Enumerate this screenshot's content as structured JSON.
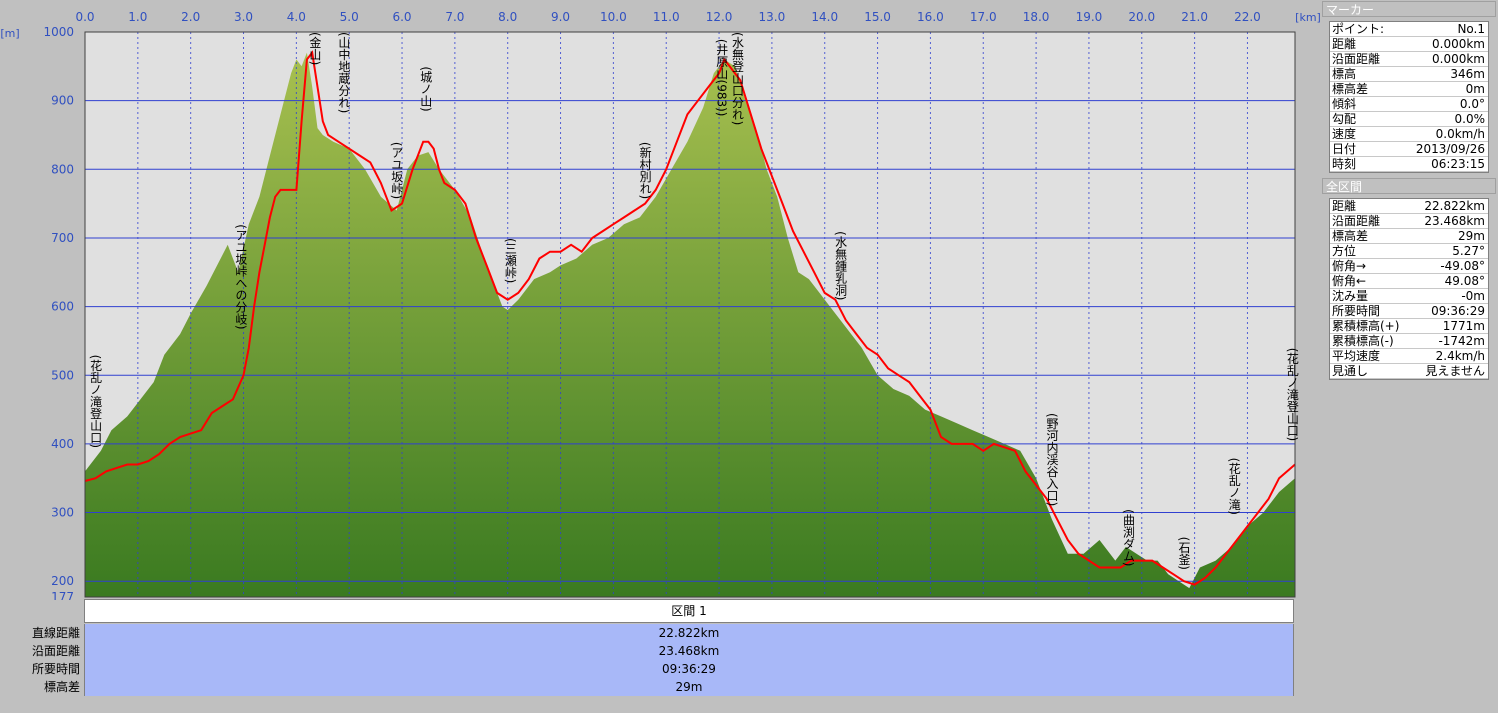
{
  "chart_data": {
    "type": "area",
    "title": "",
    "xlabel": "[km]",
    "ylabel": "[m]",
    "xlim": [
      0,
      22.9
    ],
    "ylim": [
      177,
      1000
    ],
    "x_ticks": [
      "0.0",
      "1.0",
      "2.0",
      "3.0",
      "4.0",
      "5.0",
      "6.0",
      "7.0",
      "8.0",
      "9.0",
      "10.0",
      "11.0",
      "12.0",
      "13.0",
      "14.0",
      "15.0",
      "16.0",
      "17.0",
      "18.0",
      "19.0",
      "20.0",
      "21.0",
      "22.0"
    ],
    "y_ticks": [
      "177",
      "200",
      "300",
      "400",
      "500",
      "600",
      "700",
      "800",
      "900",
      "1000"
    ],
    "grid": true,
    "series": [
      {
        "kind": "terrain",
        "x": [
          0,
          0.3,
          0.5,
          0.8,
          1.0,
          1.3,
          1.5,
          1.8,
          2.0,
          2.3,
          2.5,
          2.7,
          2.9,
          3.1,
          3.3,
          3.5,
          3.7,
          3.9,
          4.0,
          4.1,
          4.2,
          4.3,
          4.4,
          4.5,
          4.7,
          5.0,
          5.3,
          5.6,
          5.9,
          6.1,
          6.3,
          6.5,
          6.7,
          7.0,
          7.3,
          7.6,
          7.9,
          8.0,
          8.2,
          8.5,
          8.8,
          9.0,
          9.3,
          9.6,
          9.9,
          10.2,
          10.5,
          10.8,
          11.1,
          11.4,
          11.7,
          11.9,
          12.1,
          12.3,
          12.5,
          12.7,
          12.9,
          13.1,
          13.3,
          13.5,
          13.7,
          13.9,
          14.1,
          14.4,
          14.7,
          15.0,
          15.3,
          15.6,
          15.9,
          16.2,
          16.5,
          16.8,
          17.1,
          17.4,
          17.7,
          18.0,
          18.3,
          18.6,
          18.9,
          19.2,
          19.5,
          19.7,
          19.9,
          20.1,
          20.3,
          20.5,
          20.7,
          20.9,
          21.1,
          21.4,
          21.7,
          22.0,
          22.3,
          22.6,
          22.9
        ],
        "y": [
          360,
          390,
          420,
          440,
          460,
          490,
          530,
          560,
          590,
          630,
          660,
          690,
          650,
          720,
          760,
          820,
          880,
          940,
          960,
          950,
          970,
          920,
          860,
          850,
          840,
          830,
          800,
          760,
          740,
          800,
          820,
          825,
          800,
          770,
          730,
          660,
          600,
          595,
          610,
          640,
          650,
          660,
          670,
          690,
          700,
          720,
          730,
          760,
          800,
          840,
          890,
          940,
          960,
          950,
          900,
          860,
          800,
          760,
          700,
          650,
          640,
          620,
          600,
          570,
          540,
          500,
          480,
          470,
          450,
          440,
          430,
          420,
          410,
          400,
          390,
          350,
          290,
          240,
          240,
          260,
          230,
          250,
          240,
          230,
          230,
          210,
          200,
          190,
          220,
          230,
          250,
          280,
          300,
          330,
          350
        ]
      },
      {
        "kind": "track",
        "color": "#ff0000",
        "x": [
          0,
          0.2,
          0.4,
          0.6,
          0.8,
          1.0,
          1.2,
          1.4,
          1.6,
          1.8,
          2.0,
          2.2,
          2.4,
          2.6,
          2.8,
          3.0,
          3.1,
          3.2,
          3.3,
          3.4,
          3.5,
          3.6,
          3.7,
          3.8,
          3.9,
          4.0,
          4.1,
          4.2,
          4.3,
          4.4,
          4.5,
          4.6,
          4.8,
          5.0,
          5.2,
          5.4,
          5.6,
          5.8,
          6.0,
          6.2,
          6.4,
          6.5,
          6.6,
          6.7,
          6.8,
          7.0,
          7.2,
          7.4,
          7.6,
          7.8,
          8.0,
          8.2,
          8.4,
          8.6,
          8.8,
          9.0,
          9.2,
          9.4,
          9.6,
          9.8,
          10.0,
          10.2,
          10.4,
          10.6,
          10.8,
          11.0,
          11.2,
          11.4,
          11.6,
          11.8,
          12.0,
          12.1,
          12.2,
          12.4,
          12.6,
          12.8,
          13.0,
          13.2,
          13.4,
          13.6,
          13.8,
          14.0,
          14.2,
          14.4,
          14.6,
          14.8,
          15.0,
          15.2,
          15.4,
          15.6,
          15.8,
          16.0,
          16.2,
          16.4,
          16.6,
          16.8,
          17.0,
          17.2,
          17.4,
          17.6,
          17.8,
          18.0,
          18.2,
          18.4,
          18.6,
          18.8,
          19.0,
          19.2,
          19.4,
          19.6,
          19.8,
          20.0,
          20.2,
          20.4,
          20.6,
          20.8,
          21.0,
          21.2,
          21.4,
          21.6,
          21.8,
          22.0,
          22.2,
          22.4,
          22.6,
          22.9
        ],
        "y": [
          346,
          350,
          360,
          365,
          370,
          370,
          375,
          385,
          400,
          410,
          415,
          420,
          445,
          455,
          465,
          500,
          540,
          600,
          650,
          690,
          730,
          760,
          770,
          770,
          770,
          770,
          870,
          960,
          970,
          920,
          870,
          850,
          840,
          830,
          820,
          810,
          780,
          740,
          750,
          800,
          840,
          840,
          830,
          800,
          780,
          770,
          750,
          700,
          660,
          620,
          610,
          620,
          640,
          670,
          680,
          680,
          690,
          680,
          700,
          710,
          720,
          730,
          740,
          750,
          770,
          800,
          840,
          880,
          900,
          920,
          940,
          960,
          950,
          930,
          880,
          830,
          790,
          750,
          710,
          680,
          650,
          620,
          610,
          580,
          560,
          540,
          530,
          510,
          500,
          490,
          470,
          450,
          410,
          400,
          400,
          400,
          390,
          400,
          395,
          390,
          360,
          340,
          320,
          290,
          260,
          240,
          230,
          220,
          220,
          220,
          230,
          230,
          230,
          220,
          210,
          200,
          195,
          205,
          220,
          240,
          260,
          280,
          300,
          320,
          350,
          370
        ]
      }
    ],
    "annotations": [
      {
        "label": "(花乱ノ滝登山口)",
        "x": 0.2,
        "top_y": 530
      },
      {
        "label": "(アユ坂峠への分岐)",
        "x": 2.95,
        "top_y": 720
      },
      {
        "label": "(金山)",
        "x": 4.35,
        "top_y": 1000
      },
      {
        "label": "(山中地蔵分れ)",
        "x": 4.9,
        "top_y": 1000
      },
      {
        "label": "(アユ坂峠)",
        "x": 5.9,
        "top_y": 840
      },
      {
        "label": "(城ノ山)",
        "x": 6.45,
        "top_y": 950
      },
      {
        "label": "(三瀬峠)",
        "x": 8.05,
        "top_y": 700
      },
      {
        "label": "(新村別れ)",
        "x": 10.6,
        "top_y": 840
      },
      {
        "label": "(井原山(983))",
        "x": 12.05,
        "top_y": 990
      },
      {
        "label": "(水無登山口分れ)",
        "x": 12.35,
        "top_y": 1000
      },
      {
        "label": "(水無鍾乳洞)",
        "x": 14.3,
        "top_y": 710
      },
      {
        "label": "(野河内渓谷入口)",
        "x": 18.3,
        "top_y": 445
      },
      {
        "label": "(曲渕ダム)",
        "x": 19.75,
        "top_y": 305
      },
      {
        "label": "(石釜)",
        "x": 20.8,
        "top_y": 265
      },
      {
        "label": "(花乱ノ滝)",
        "x": 21.75,
        "top_y": 380
      },
      {
        "label": "(花乱ノ滝登山口)",
        "x": 22.85,
        "top_y": 540
      }
    ]
  },
  "section": {
    "header": "区間 1",
    "rows": [
      {
        "label": "直線距離",
        "value": "22.822km"
      },
      {
        "label": "沿面距離",
        "value": "23.468km"
      },
      {
        "label": "所要時間",
        "value": "09:36:29"
      },
      {
        "label": "標高差",
        "value": "29m"
      }
    ]
  },
  "marker_panel": {
    "title": "マーカー",
    "rows": [
      {
        "k": "ポイント:",
        "v": "No.1"
      },
      {
        "k": "距離",
        "v": "0.000km"
      },
      {
        "k": "沿面距離",
        "v": "0.000km"
      },
      {
        "k": "標高",
        "v": "346m"
      },
      {
        "k": "標高差",
        "v": "0m"
      },
      {
        "k": "傾斜",
        "v": "0.0°"
      },
      {
        "k": "勾配",
        "v": "0.0%"
      },
      {
        "k": "速度",
        "v": "0.0km/h"
      },
      {
        "k": "日付",
        "v": "2013/09/26"
      },
      {
        "k": "時刻",
        "v": "06:23:15"
      }
    ]
  },
  "total_panel": {
    "title": "全区間",
    "rows": [
      {
        "k": "距離",
        "v": "22.822km"
      },
      {
        "k": "沿面距離",
        "v": "23.468km"
      },
      {
        "k": "標高差",
        "v": "29m"
      },
      {
        "k": "方位",
        "v": "5.27°"
      },
      {
        "k": "俯角→",
        "v": "-49.08°"
      },
      {
        "k": "俯角←",
        "v": "49.08°"
      },
      {
        "k": "沈み量",
        "v": "-0m"
      },
      {
        "k": "所要時間",
        "v": "09:36:29"
      },
      {
        "k": "累積標高(+)",
        "v": "1771m"
      },
      {
        "k": "累積標高(-)",
        "v": "-1742m"
      },
      {
        "k": "平均速度",
        "v": "2.4km/h"
      },
      {
        "k": "見通し",
        "v": "見えません"
      }
    ]
  },
  "colors": {
    "terrain_top": "#a8c050",
    "terrain_bottom": "#3a7a20",
    "track": "#ff0000",
    "grid": "#3040d0",
    "sky": "#e0e0e0",
    "section_row": "#a8b8f8"
  }
}
